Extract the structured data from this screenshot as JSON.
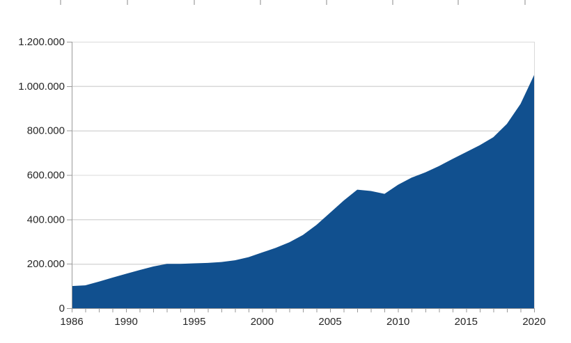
{
  "chart_data": {
    "type": "area",
    "title": "",
    "xlabel": "",
    "ylabel": "",
    "legend": "none",
    "grid": "horizontal-only",
    "xlim": [
      1986,
      2020
    ],
    "ylim": [
      0,
      1200000
    ],
    "x": [
      1986,
      1987,
      1988,
      1989,
      1990,
      1991,
      1992,
      1993,
      1994,
      1995,
      1996,
      1997,
      1998,
      1999,
      2000,
      2001,
      2002,
      2003,
      2004,
      2005,
      2006,
      2007,
      2008,
      2009,
      2010,
      2011,
      2012,
      2013,
      2014,
      2015,
      2016,
      2017,
      2018,
      2019,
      2020
    ],
    "values": [
      100000,
      103000,
      120000,
      138000,
      155000,
      172000,
      188000,
      200000,
      200000,
      202000,
      204000,
      208000,
      216000,
      230000,
      251000,
      272000,
      297000,
      330000,
      375000,
      430000,
      485000,
      534000,
      528000,
      515000,
      556000,
      588000,
      612000,
      640000,
      672000,
      703000,
      734000,
      770000,
      830000,
      920000,
      1050000
    ],
    "x_tick_years": [
      1986,
      1990,
      1995,
      2000,
      2005,
      2010,
      2015,
      2020
    ],
    "x_tick_labels": [
      "1986",
      "1990",
      "1995",
      "2000",
      "2005",
      "2010",
      "2015",
      "2020"
    ],
    "x_minor_tick_every": 1,
    "y_tick_values": [
      0,
      200000,
      400000,
      600000,
      800000,
      1000000,
      1200000
    ],
    "y_tick_labels": [
      "0",
      "200.000",
      "400.000",
      "600.000",
      "800.000",
      "1.000.000",
      "1.200.000"
    ],
    "colors": {
      "series": "#11508F",
      "gridline": "#d9d9d9",
      "axis": "#999999",
      "tick": "#999999",
      "label": "#262626",
      "background": "#ffffff",
      "ruler_tick": "#c4c4c4"
    }
  },
  "artifacts": {
    "top_ruler_ticks_x": [
      86,
      182,
      278,
      373,
      468,
      563,
      657,
      753
    ]
  }
}
